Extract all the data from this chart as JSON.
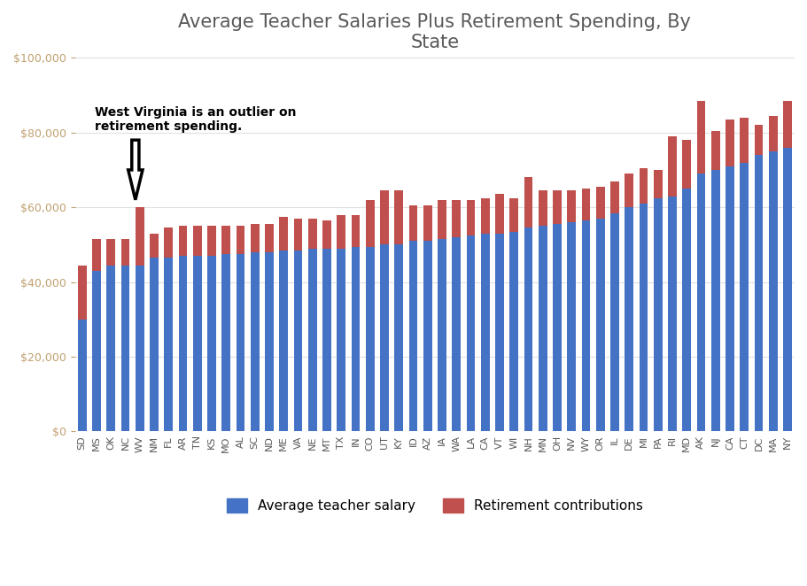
{
  "title": "Average Teacher Salaries Plus Retirement Spending, By\nState",
  "states": [
    "SD",
    "MS",
    "OK",
    "NC",
    "WV",
    "NM",
    "FL",
    "AR",
    "TN",
    "KS",
    "MO",
    "AL",
    "SC",
    "ND",
    "ME",
    "VA",
    "NE",
    "MT",
    "TX",
    "IN",
    "CO",
    "UT",
    "KY",
    "ID",
    "AZ",
    "IA",
    "WA",
    "LA",
    "CA",
    "VT",
    "WI",
    "NH",
    "MN",
    "OH",
    "NV",
    "WY",
    "OR",
    "IL",
    "DE",
    "MI",
    "PA",
    "RI",
    "MD",
    "AK",
    "NJ",
    "CA",
    "CT",
    "DC",
    "MA",
    "NY"
  ],
  "avg_salary": [
    30000,
    43000,
    44500,
    44500,
    44500,
    46500,
    46500,
    47000,
    47000,
    47000,
    47500,
    47500,
    48000,
    48000,
    48500,
    48500,
    49000,
    49000,
    49000,
    49500,
    49500,
    50000,
    50000,
    51000,
    51000,
    51500,
    52000,
    52500,
    53000,
    53000,
    53500,
    54500,
    55000,
    55500,
    56000,
    56500,
    57000,
    58500,
    60000,
    61000,
    62500,
    63000,
    65000,
    69000,
    70000,
    71000,
    72000,
    74000,
    75000,
    76000
  ],
  "retirement": [
    14500,
    8500,
    7000,
    7000,
    15500,
    6500,
    8000,
    8000,
    8000,
    8000,
    7500,
    7500,
    7500,
    7500,
    9000,
    8500,
    8000,
    7500,
    9000,
    8500,
    12500,
    14500,
    14500,
    9500,
    9500,
    10500,
    10000,
    9500,
    9500,
    10500,
    9000,
    13500,
    9500,
    9000,
    8500,
    8500,
    8500,
    8500,
    9000,
    9500,
    7500,
    16000,
    13000,
    19500,
    10500,
    12500,
    12000,
    8000,
    9500,
    12500
  ],
  "bar_color_salary": "#4472C4",
  "bar_color_retirement": "#C0504D",
  "background_color": "#FFFFFF",
  "ylim": [
    0,
    100000
  ],
  "yticks": [
    0,
    20000,
    40000,
    60000,
    80000,
    100000
  ],
  "annotation_text": "West Virginia is an outlier on\nretirement spending.",
  "legend_salary": "Average teacher salary",
  "legend_retirement": "Retirement contributions",
  "wv_index": 4
}
